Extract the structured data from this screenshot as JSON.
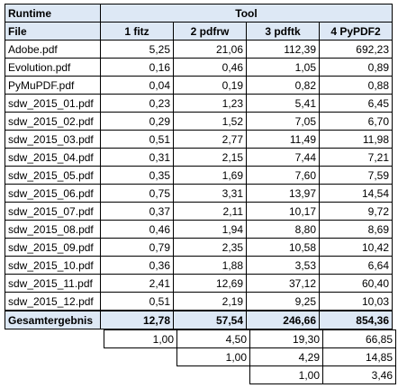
{
  "header": {
    "runtime_label": "Runtime",
    "tool_label": "Tool",
    "file_label": "File",
    "columns": [
      "1 fitz",
      "2 pdfrw",
      "3 pdftk",
      "4 PyPDF2"
    ]
  },
  "rows": [
    {
      "file": "Adobe.pdf",
      "values": [
        "5,25",
        "21,06",
        "112,39",
        "692,23"
      ]
    },
    {
      "file": "Evolution.pdf",
      "values": [
        "0,16",
        "0,46",
        "1,05",
        "0,89"
      ]
    },
    {
      "file": "PyMuPDF.pdf",
      "values": [
        "0,04",
        "0,19",
        "0,82",
        "0,88"
      ]
    },
    {
      "file": "sdw_2015_01.pdf",
      "values": [
        "0,23",
        "1,23",
        "5,41",
        "6,45"
      ]
    },
    {
      "file": "sdw_2015_02.pdf",
      "values": [
        "0,29",
        "1,52",
        "7,05",
        "6,70"
      ]
    },
    {
      "file": "sdw_2015_03.pdf",
      "values": [
        "0,51",
        "2,77",
        "11,49",
        "11,98"
      ]
    },
    {
      "file": "sdw_2015_04.pdf",
      "values": [
        "0,31",
        "2,15",
        "7,44",
        "7,21"
      ]
    },
    {
      "file": "sdw_2015_05.pdf",
      "values": [
        "0,35",
        "1,69",
        "7,60",
        "7,59"
      ]
    },
    {
      "file": "sdw_2015_06.pdf",
      "values": [
        "0,75",
        "3,31",
        "13,97",
        "14,54"
      ]
    },
    {
      "file": "sdw_2015_07.pdf",
      "values": [
        "0,37",
        "2,11",
        "10,17",
        "9,72"
      ]
    },
    {
      "file": "sdw_2015_08.pdf",
      "values": [
        "0,46",
        "1,94",
        "8,80",
        "8,69"
      ]
    },
    {
      "file": "sdw_2015_09.pdf",
      "values": [
        "0,79",
        "2,35",
        "10,58",
        "10,42"
      ]
    },
    {
      "file": "sdw_2015_10.pdf",
      "values": [
        "0,36",
        "1,88",
        "3,53",
        "6,64"
      ]
    },
    {
      "file": "sdw_2015_11.pdf",
      "values": [
        "2,41",
        "12,69",
        "37,12",
        "60,40"
      ]
    },
    {
      "file": "sdw_2015_12.pdf",
      "values": [
        "0,51",
        "2,19",
        "9,25",
        "10,03"
      ]
    }
  ],
  "total": {
    "label": "Gesamtergebnis",
    "values": [
      "12,78",
      "57,54",
      "246,66",
      "854,36"
    ]
  },
  "ratios": [
    [
      "1,00",
      "4,50",
      "19,30",
      "66,85"
    ],
    [
      "",
      "1,00",
      "4,29",
      "14,85"
    ],
    [
      "",
      "",
      "1,00",
      "3,46"
    ]
  ]
}
